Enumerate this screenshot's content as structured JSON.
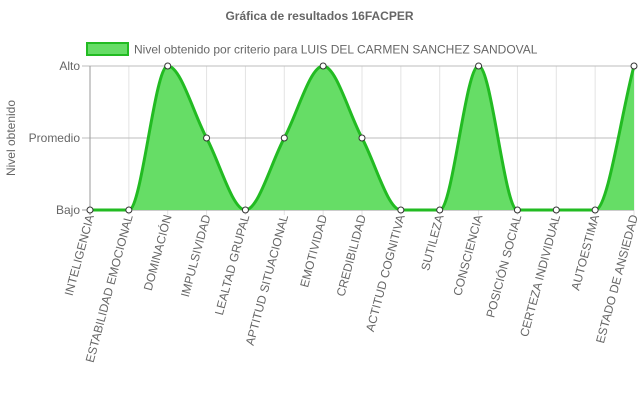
{
  "chart_data": {
    "type": "area",
    "title": "Gráfica de resultados 16FACPER",
    "ylabel": "Nivel obtenido",
    "xlabel": "",
    "y_levels": [
      "Bajo",
      "Promedio",
      "Alto"
    ],
    "ylim": [
      0,
      2
    ],
    "legend_position": "top",
    "grid": true,
    "categories": [
      "INTELIGENCIA",
      "ESTABILIDAD EMOCIONAL",
      "DOMINACIÓN",
      "IMPULSIVIDAD",
      "LEALTAD GRUPAL",
      "APTITUD SITUACIONAL",
      "EMOTIVIDAD",
      "CREDIBILIDAD",
      "ACTITUD COGNITIVA",
      "SUTILEZA",
      "CONSCIENCIA",
      "POSICIÓN SOCIAL",
      "CERTEZA INDIVIDUAL",
      "AUTOESTIMA",
      "ESTADO DE ANSIEDAD"
    ],
    "series": [
      {
        "name": "Nivel obtenido por criterio para LUIS DEL CARMEN SANCHEZ SANDOVAL",
        "values": [
          0,
          0,
          2,
          1,
          0,
          1,
          2,
          1,
          0,
          0,
          2,
          0,
          0,
          0,
          2
        ]
      }
    ],
    "colors": {
      "fill": "#66dd66",
      "stroke": "#22bb22",
      "point_fill": "#ffffff",
      "point_stroke": "#333333",
      "grid": "#e3e3e3",
      "axis": "#999999",
      "text": "#666666"
    }
  }
}
